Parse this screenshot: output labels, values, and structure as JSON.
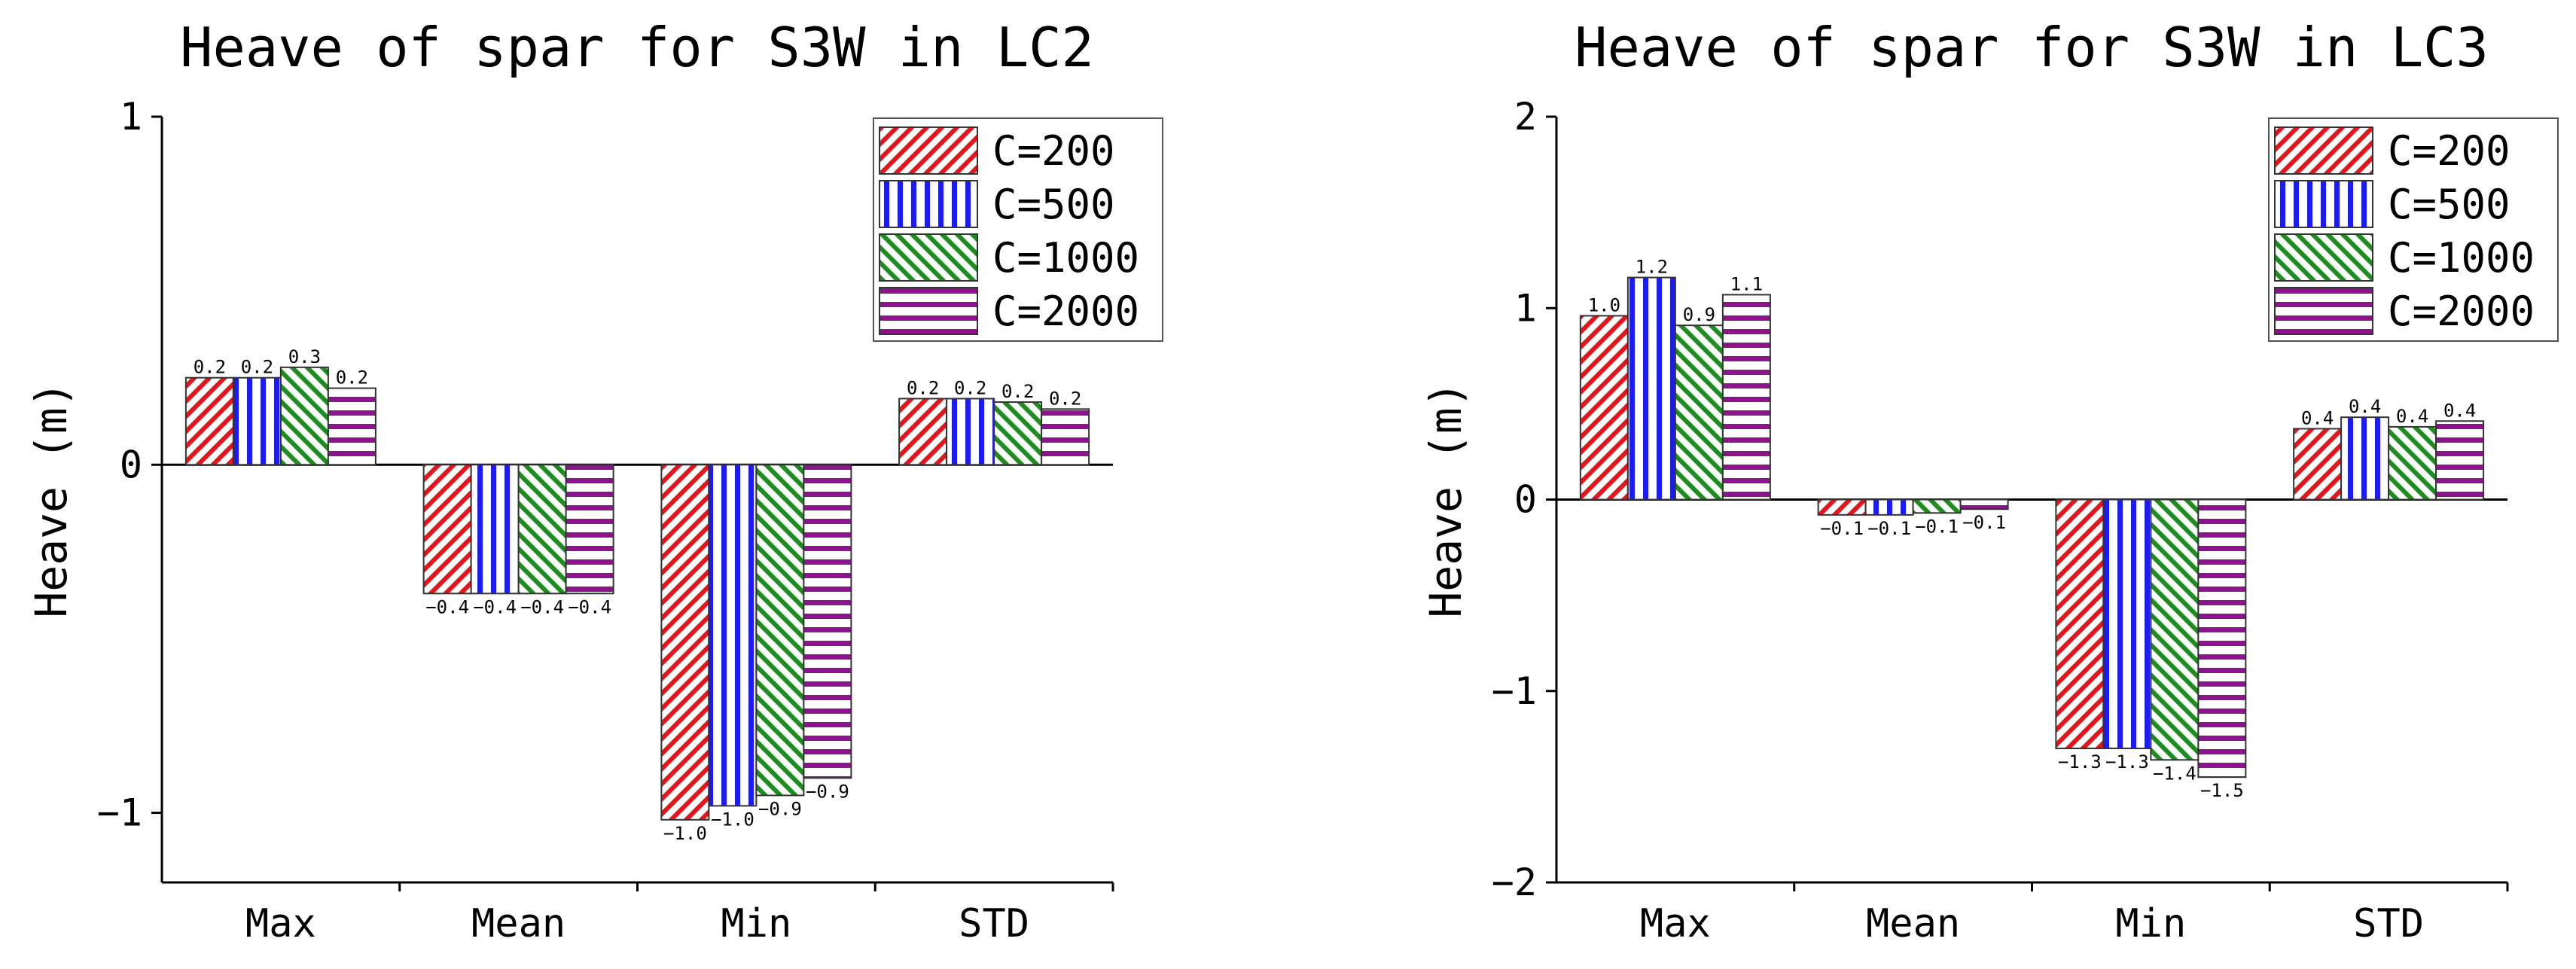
{
  "chart_data": [
    {
      "type": "bar",
      "title": "Heave of spar for S3W in LC2",
      "xlabel": "",
      "ylabel": "Heave (m)",
      "ylim": [
        -1.2,
        1.0
      ],
      "yticks": [
        -1,
        0,
        1
      ],
      "ytick_labels": [
        "-1",
        "0",
        "1"
      ],
      "categories": [
        "Max",
        "Mean",
        "Min",
        "STD"
      ],
      "series": [
        {
          "name": "C=200",
          "values": [
            0.25,
            -0.37,
            -1.02,
            0.19
          ],
          "labels": [
            "0.2",
            "-0.4",
            "-1.0",
            "0.2"
          ]
        },
        {
          "name": "C=500",
          "values": [
            0.25,
            -0.37,
            -0.98,
            0.19
          ],
          "labels": [
            "0.2",
            "-0.4",
            "-1.0",
            "0.2"
          ]
        },
        {
          "name": "C=1000",
          "values": [
            0.28,
            -0.37,
            -0.95,
            0.18
          ],
          "labels": [
            "0.3",
            "-0.4",
            "-0.9",
            "0.2"
          ]
        },
        {
          "name": "C=2000",
          "values": [
            0.22,
            -0.37,
            -0.9,
            0.16
          ],
          "labels": [
            "0.2",
            "-0.4",
            "-0.9",
            "0.2"
          ]
        }
      ],
      "legend_position": "top-right",
      "grid": false
    },
    {
      "type": "bar",
      "title": "Heave of spar for S3W in LC3",
      "xlabel": "",
      "ylabel": "Heave (m)",
      "ylim": [
        -2.0,
        2.0
      ],
      "yticks": [
        -2,
        -1,
        0,
        1,
        2
      ],
      "ytick_labels": [
        "-2",
        "-1",
        "0",
        "1",
        "2"
      ],
      "categories": [
        "Max",
        "Mean",
        "Min",
        "STD"
      ],
      "series": [
        {
          "name": "C=200",
          "values": [
            0.96,
            -0.08,
            -1.3,
            0.37
          ],
          "labels": [
            "1.0",
            "-0.1",
            "-1.3",
            "0.4"
          ]
        },
        {
          "name": "C=500",
          "values": [
            1.16,
            -0.08,
            -1.3,
            0.43
          ],
          "labels": [
            "1.2",
            "-0.1",
            "-1.3",
            "0.4"
          ]
        },
        {
          "name": "C=1000",
          "values": [
            0.91,
            -0.07,
            -1.36,
            0.38
          ],
          "labels": [
            "0.9",
            "-0.1",
            "-1.4",
            "0.4"
          ]
        },
        {
          "name": "C=2000",
          "values": [
            1.07,
            -0.05,
            -1.45,
            0.41
          ],
          "labels": [
            "1.1",
            "-0.1",
            "-1.5",
            "0.4"
          ]
        }
      ],
      "legend_position": "top-right",
      "grid": false
    }
  ],
  "colors": {
    "C=200": "#e8141c",
    "C=500": "#1c1cf0",
    "C=1000": "#1e8c1e",
    "C=2000": "#8c148c"
  }
}
